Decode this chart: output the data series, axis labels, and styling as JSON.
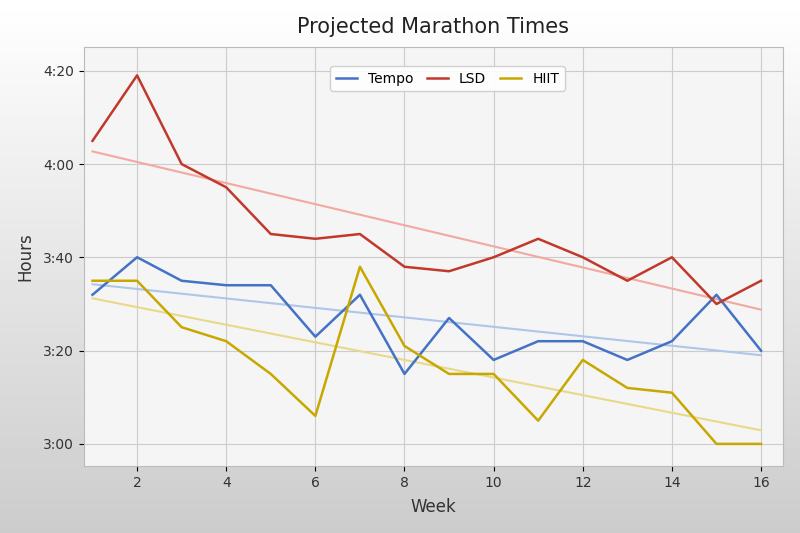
{
  "title": "Projected Marathon Times",
  "xlabel": "Week",
  "ylabel": "Hours",
  "weeks": [
    1,
    2,
    3,
    4,
    5,
    6,
    7,
    8,
    9,
    10,
    11,
    12,
    13,
    14,
    15,
    16
  ],
  "tempo": [
    3.533,
    3.667,
    3.583,
    3.567,
    3.567,
    3.383,
    3.533,
    3.25,
    3.45,
    3.3,
    3.367,
    3.367,
    3.3,
    3.367,
    3.533,
    3.333
  ],
  "lsd": [
    4.083,
    4.317,
    4.0,
    3.917,
    3.75,
    3.733,
    3.75,
    3.633,
    3.617,
    3.667,
    3.733,
    3.667,
    3.583,
    3.667,
    3.5,
    3.583
  ],
  "hiit": [
    3.583,
    3.583,
    3.417,
    3.367,
    3.25,
    3.1,
    3.633,
    3.35,
    3.25,
    3.25,
    3.083,
    3.3,
    3.2,
    3.183,
    3.0,
    3.0
  ],
  "tempo_color": "#4472c4",
  "lsd_color": "#c0392b",
  "hiit_color": "#c8a800",
  "trend_tempo_color": "#aec6e8",
  "trend_lsd_color": "#f1a9a0",
  "trend_hiit_color": "#e8d98a",
  "plot_bg_color": "#f5f5f5",
  "grid_color": "#cccccc",
  "yticks": [
    3.0,
    3.333,
    3.667,
    4.0,
    4.333
  ],
  "ytick_labels": [
    "3:00",
    "3:20",
    "3:40",
    "4:00",
    "4:20"
  ],
  "xticks": [
    2,
    4,
    6,
    8,
    10,
    12,
    14,
    16
  ],
  "ylim": [
    2.92,
    4.42
  ],
  "xlim": [
    0.8,
    16.5
  ]
}
